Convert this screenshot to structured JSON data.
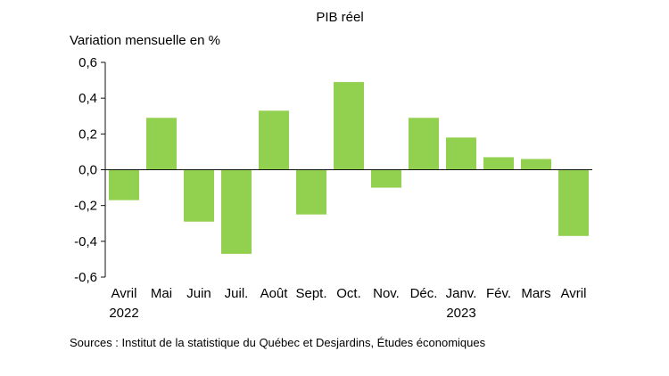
{
  "chart_data": {
    "type": "bar",
    "title": "PIB réel",
    "ylabel": "Variation mensuelle en %",
    "xlabel": "",
    "ylim": [
      -0.6,
      0.6
    ],
    "yticks": [
      "0,6",
      "0,4",
      "0,2",
      "0,0",
      "-0,2",
      "-0,4",
      "-0,6"
    ],
    "ytick_values": [
      0.6,
      0.4,
      0.2,
      0.0,
      -0.2,
      -0.4,
      -0.6
    ],
    "categories": [
      "Avril",
      "Mai",
      "Juin",
      "Juil.",
      "Août",
      "Sept.",
      "Oct.",
      "Nov.",
      "Déc.",
      "Janv.",
      "Fév.",
      "Mars",
      "Avril"
    ],
    "year_labels": [
      {
        "category_index": 0,
        "label": "2022"
      },
      {
        "category_index": 9,
        "label": "2023"
      }
    ],
    "values": [
      -0.17,
      0.29,
      -0.29,
      -0.47,
      0.33,
      -0.25,
      0.49,
      -0.1,
      0.29,
      0.18,
      0.07,
      0.06,
      -0.37
    ],
    "bar_color": "#92d050",
    "grid": false,
    "source": "Sources : Institut de la statistique du Québec et Desjardins, Études économiques"
  }
}
